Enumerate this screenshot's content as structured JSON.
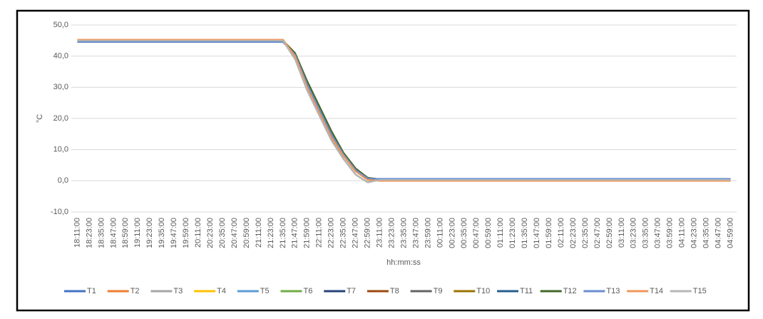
{
  "chart_data": {
    "type": "line",
    "y_label": "°C",
    "x_label": "hh:mm:ss",
    "categories": [
      "18:11:00",
      "18:23:00",
      "18:35:00",
      "18:47:00",
      "18:59:00",
      "19:11:00",
      "19:23:00",
      "19:35:00",
      "19:47:00",
      "19:59:00",
      "20:11:00",
      "20:23:00",
      "20:35:00",
      "20:47:00",
      "20:59:00",
      "21:11:00",
      "21:23:00",
      "21:35:00",
      "21:47:00",
      "21:59:00",
      "22:11:00",
      "22:23:00",
      "22:35:00",
      "22:47:00",
      "22:59:00",
      "23:11:00",
      "23:23:00",
      "23:35:00",
      "23:47:00",
      "23:59:00",
      "00:11:00",
      "00:23:00",
      "00:35:00",
      "00:47:00",
      "00:59:00",
      "01:11:00",
      "01:23:00",
      "01:35:00",
      "01:47:00",
      "01:59:00",
      "02:11:00",
      "02:23:00",
      "02:35:00",
      "02:47:00",
      "02:59:00",
      "03:11:00",
      "03:23:00",
      "03:35:00",
      "03:47:00",
      "03:59:00",
      "04:11:00",
      "04:23:00",
      "04:35:00",
      "04:47:00",
      "04:59:00"
    ],
    "ylim": [
      -10,
      50
    ],
    "yticks": [
      {
        "value": -10,
        "label": "-10,0"
      },
      {
        "value": 0,
        "label": "0,0"
      },
      {
        "value": 10,
        "label": "10,0"
      },
      {
        "value": 20,
        "label": "20,0"
      },
      {
        "value": 30,
        "label": "30,0"
      },
      {
        "value": 40,
        "label": "40,0"
      },
      {
        "value": 50,
        "label": "50,0"
      }
    ],
    "grid": true,
    "legend": "bottom",
    "series": [
      {
        "name": "T1",
        "color": "#4472c4",
        "values": [
          44.5,
          44.5,
          44.5,
          44.5,
          44.5,
          44.5,
          44.5,
          44.5,
          44.5,
          44.5,
          44.5,
          44.5,
          44.5,
          44.5,
          44.5,
          44.5,
          44.5,
          44.5,
          40.5,
          31,
          23,
          15,
          8.5,
          3.5,
          0.8,
          0.6,
          0.6,
          0.6,
          0.6,
          0.6,
          0.6,
          0.6,
          0.6,
          0.6,
          0.6,
          0.6,
          0.6,
          0.6,
          0.6,
          0.6,
          0.6,
          0.6,
          0.6,
          0.6,
          0.6,
          0.6,
          0.6,
          0.6,
          0.6,
          0.6,
          0.6,
          0.6,
          0.6,
          0.6,
          0.6
        ]
      },
      {
        "name": "T2",
        "color": "#ed7d31",
        "values": [
          45.3,
          45.3,
          45.3,
          45.3,
          45.3,
          45.3,
          45.3,
          45.3,
          45.3,
          45.3,
          45.3,
          45.3,
          45.3,
          45.3,
          45.3,
          45.3,
          45.3,
          45.3,
          40,
          30,
          22,
          14,
          8,
          3,
          0.3,
          0,
          0,
          0,
          0,
          0,
          0,
          0,
          0,
          0,
          0,
          0,
          0,
          0,
          0,
          0,
          0,
          0,
          0,
          0,
          0,
          0,
          0,
          0,
          0,
          0,
          0,
          0,
          0,
          0,
          0
        ]
      },
      {
        "name": "T3",
        "color": "#a5a5a5",
        "values": [
          45,
          45,
          45,
          45,
          45,
          45,
          45,
          45,
          45,
          45,
          45,
          45,
          45,
          45,
          45,
          45,
          45,
          45,
          39,
          29,
          21,
          13,
          7,
          2,
          -0.5,
          0.3,
          0.3,
          0.3,
          0.3,
          0.3,
          0.3,
          0.3,
          0.3,
          0.3,
          0.3,
          0.3,
          0.3,
          0.3,
          0.3,
          0.3,
          0.3,
          0.3,
          0.3,
          0.3,
          0.3,
          0.3,
          0.3,
          0.3,
          0.3,
          0.3,
          0.3,
          0.3,
          0.3,
          0.3,
          0.3
        ]
      },
      {
        "name": "T4",
        "color": "#ffc000",
        "values": [
          45,
          45,
          45,
          45,
          45,
          45,
          45,
          45,
          45,
          45,
          45,
          45,
          45,
          45,
          45,
          45,
          45,
          45,
          41,
          32,
          24,
          16,
          9,
          4,
          1,
          0.5,
          0.5,
          0.5,
          0.5,
          0.5,
          0.5,
          0.5,
          0.5,
          0.5,
          0.5,
          0.5,
          0.5,
          0.5,
          0.5,
          0.5,
          0.5,
          0.5,
          0.5,
          0.5,
          0.5,
          0.5,
          0.5,
          0.5,
          0.5,
          0.5,
          0.5,
          0.5,
          0.5,
          0.5,
          0.5
        ]
      },
      {
        "name": "T5",
        "color": "#5b9bd5",
        "values": [
          44.5,
          44.5,
          44.5,
          44.5,
          44.5,
          44.5,
          44.5,
          44.5,
          44.5,
          44.5,
          44.5,
          44.5,
          44.5,
          44.5,
          44.5,
          44.5,
          44.5,
          44.5,
          40.5,
          31,
          23,
          15,
          8.5,
          3.5,
          0.8,
          0.6,
          0.6,
          0.6,
          0.6,
          0.6,
          0.6,
          0.6,
          0.6,
          0.6,
          0.6,
          0.6,
          0.6,
          0.6,
          0.6,
          0.6,
          0.6,
          0.6,
          0.6,
          0.6,
          0.6,
          0.6,
          0.6,
          0.6,
          0.6,
          0.6,
          0.6,
          0.6,
          0.6,
          0.6,
          0.6
        ]
      },
      {
        "name": "T6",
        "color": "#70ad47",
        "values": [
          45,
          45,
          45,
          45,
          45,
          45,
          45,
          45,
          45,
          45,
          45,
          45,
          45,
          45,
          45,
          45,
          45,
          45,
          39,
          29,
          21,
          13,
          7,
          2,
          -0.5,
          0.3,
          0.3,
          0.3,
          0.3,
          0.3,
          0.3,
          0.3,
          0.3,
          0.3,
          0.3,
          0.3,
          0.3,
          0.3,
          0.3,
          0.3,
          0.3,
          0.3,
          0.3,
          0.3,
          0.3,
          0.3,
          0.3,
          0.3,
          0.3,
          0.3,
          0.3,
          0.3,
          0.3,
          0.3,
          0.3
        ]
      },
      {
        "name": "T7",
        "color": "#264478",
        "values": [
          45,
          45,
          45,
          45,
          45,
          45,
          45,
          45,
          45,
          45,
          45,
          45,
          45,
          45,
          45,
          45,
          45,
          45,
          41,
          32,
          24,
          16,
          9,
          4,
          1,
          0.5,
          0.5,
          0.5,
          0.5,
          0.5,
          0.5,
          0.5,
          0.5,
          0.5,
          0.5,
          0.5,
          0.5,
          0.5,
          0.5,
          0.5,
          0.5,
          0.5,
          0.5,
          0.5,
          0.5,
          0.5,
          0.5,
          0.5,
          0.5,
          0.5,
          0.5,
          0.5,
          0.5,
          0.5,
          0.5
        ]
      },
      {
        "name": "T8",
        "color": "#9e480e",
        "values": [
          45.3,
          45.3,
          45.3,
          45.3,
          45.3,
          45.3,
          45.3,
          45.3,
          45.3,
          45.3,
          45.3,
          45.3,
          45.3,
          45.3,
          45.3,
          45.3,
          45.3,
          45.3,
          40,
          30,
          22,
          14,
          8,
          3,
          0.3,
          0,
          0,
          0,
          0,
          0,
          0,
          0,
          0,
          0,
          0,
          0,
          0,
          0,
          0,
          0,
          0,
          0,
          0,
          0,
          0,
          0,
          0,
          0,
          0,
          0,
          0,
          0,
          0,
          0,
          0
        ]
      },
      {
        "name": "T9",
        "color": "#636363",
        "values": [
          45,
          45,
          45,
          45,
          45,
          45,
          45,
          45,
          45,
          45,
          45,
          45,
          45,
          45,
          45,
          45,
          45,
          45,
          39,
          29,
          21,
          13,
          7,
          2,
          -0.5,
          0.3,
          0.3,
          0.3,
          0.3,
          0.3,
          0.3,
          0.3,
          0.3,
          0.3,
          0.3,
          0.3,
          0.3,
          0.3,
          0.3,
          0.3,
          0.3,
          0.3,
          0.3,
          0.3,
          0.3,
          0.3,
          0.3,
          0.3,
          0.3,
          0.3,
          0.3,
          0.3,
          0.3,
          0.3,
          0.3
        ]
      },
      {
        "name": "T10",
        "color": "#997300",
        "values": [
          45,
          45,
          45,
          45,
          45,
          45,
          45,
          45,
          45,
          45,
          45,
          45,
          45,
          45,
          45,
          45,
          45,
          45,
          41,
          32,
          24,
          16,
          9,
          4,
          1,
          0.5,
          0.5,
          0.5,
          0.5,
          0.5,
          0.5,
          0.5,
          0.5,
          0.5,
          0.5,
          0.5,
          0.5,
          0.5,
          0.5,
          0.5,
          0.5,
          0.5,
          0.5,
          0.5,
          0.5,
          0.5,
          0.5,
          0.5,
          0.5,
          0.5,
          0.5,
          0.5,
          0.5,
          0.5,
          0.5
        ]
      },
      {
        "name": "T11",
        "color": "#255e91",
        "values": [
          44.5,
          44.5,
          44.5,
          44.5,
          44.5,
          44.5,
          44.5,
          44.5,
          44.5,
          44.5,
          44.5,
          44.5,
          44.5,
          44.5,
          44.5,
          44.5,
          44.5,
          44.5,
          40.5,
          31,
          23,
          15,
          8.5,
          3.5,
          0.8,
          0.6,
          0.6,
          0.6,
          0.6,
          0.6,
          0.6,
          0.6,
          0.6,
          0.6,
          0.6,
          0.6,
          0.6,
          0.6,
          0.6,
          0.6,
          0.6,
          0.6,
          0.6,
          0.6,
          0.6,
          0.6,
          0.6,
          0.6,
          0.6,
          0.6,
          0.6,
          0.6,
          0.6,
          0.6,
          0.6
        ]
      },
      {
        "name": "T12",
        "color": "#43682b",
        "values": [
          45,
          45,
          45,
          45,
          45,
          45,
          45,
          45,
          45,
          45,
          45,
          45,
          45,
          45,
          45,
          45,
          45,
          45,
          41,
          32,
          24,
          16,
          9,
          4,
          1,
          0.5,
          0.5,
          0.5,
          0.5,
          0.5,
          0.5,
          0.5,
          0.5,
          0.5,
          0.5,
          0.5,
          0.5,
          0.5,
          0.5,
          0.5,
          0.5,
          0.5,
          0.5,
          0.5,
          0.5,
          0.5,
          0.5,
          0.5,
          0.5,
          0.5,
          0.5,
          0.5,
          0.5,
          0.5,
          0.5
        ]
      },
      {
        "name": "T13",
        "color": "#698ed0",
        "values": [
          44.5,
          44.5,
          44.5,
          44.5,
          44.5,
          44.5,
          44.5,
          44.5,
          44.5,
          44.5,
          44.5,
          44.5,
          44.5,
          44.5,
          44.5,
          44.5,
          44.5,
          44.5,
          40.5,
          31,
          23,
          15,
          8.5,
          3.5,
          0.8,
          0.6,
          0.6,
          0.6,
          0.6,
          0.6,
          0.6,
          0.6,
          0.6,
          0.6,
          0.6,
          0.6,
          0.6,
          0.6,
          0.6,
          0.6,
          0.6,
          0.6,
          0.6,
          0.6,
          0.6,
          0.6,
          0.6,
          0.6,
          0.6,
          0.6,
          0.6,
          0.6,
          0.6,
          0.6,
          0.6
        ]
      },
      {
        "name": "T14",
        "color": "#f1975a",
        "values": [
          45.3,
          45.3,
          45.3,
          45.3,
          45.3,
          45.3,
          45.3,
          45.3,
          45.3,
          45.3,
          45.3,
          45.3,
          45.3,
          45.3,
          45.3,
          45.3,
          45.3,
          45.3,
          40,
          30,
          22,
          14,
          8,
          3,
          0.3,
          0,
          0,
          0,
          0,
          0,
          0,
          0,
          0,
          0,
          0,
          0,
          0,
          0,
          0,
          0,
          0,
          0,
          0,
          0,
          0,
          0,
          0,
          0,
          0,
          0,
          0,
          0,
          0,
          0,
          0
        ]
      },
      {
        "name": "T15",
        "color": "#b7b7b7",
        "values": [
          45,
          45,
          45,
          45,
          45,
          45,
          45,
          45,
          45,
          45,
          45,
          45,
          45,
          45,
          45,
          45,
          45,
          45,
          39,
          29,
          21,
          13,
          7,
          2,
          -0.5,
          0.3,
          0.3,
          0.3,
          0.3,
          0.3,
          0.3,
          0.3,
          0.3,
          0.3,
          0.3,
          0.3,
          0.3,
          0.3,
          0.3,
          0.3,
          0.3,
          0.3,
          0.3,
          0.3,
          0.3,
          0.3,
          0.3,
          0.3,
          0.3,
          0.3,
          0.3,
          0.3,
          0.3,
          0.3,
          0.3
        ]
      }
    ]
  }
}
